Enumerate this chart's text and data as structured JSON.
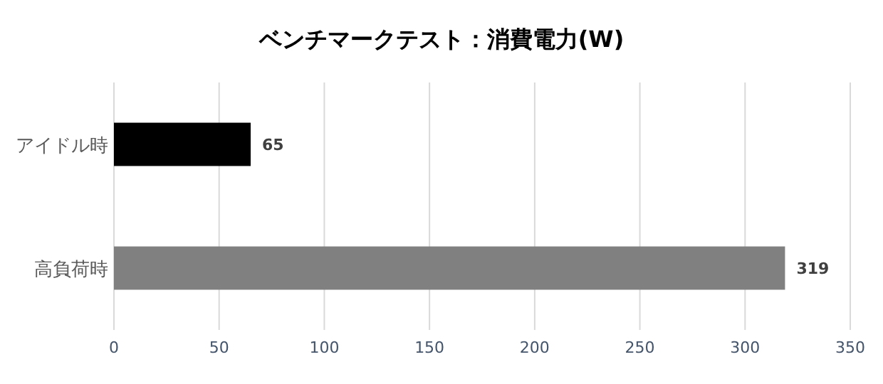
{
  "chart_data": {
    "type": "bar",
    "orientation": "horizontal",
    "title": "ベンチマークテスト：消費電力(W)",
    "categories": [
      "アイドル時",
      "高負荷時"
    ],
    "values": [
      65,
      319
    ],
    "colors": [
      "#000000",
      "#808080"
    ],
    "xlim": [
      0,
      350
    ],
    "xticks": [
      0,
      50,
      100,
      150,
      200,
      250,
      300,
      350
    ],
    "grid": "x",
    "data_labels": true
  }
}
